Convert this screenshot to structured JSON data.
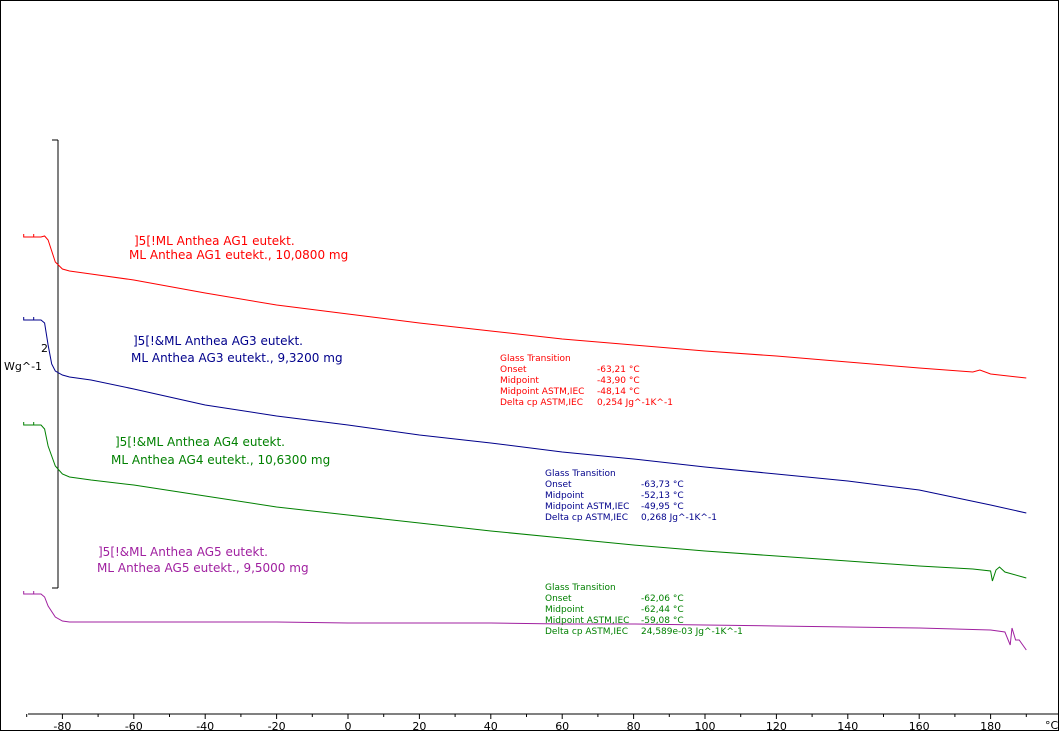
{
  "chart_data": {
    "type": "line",
    "xlim": [
      -90,
      190
    ],
    "x_unit": "°C",
    "x_ticks": [
      -80,
      -60,
      -40,
      -20,
      0,
      20,
      40,
      60,
      80,
      100,
      120,
      140,
      160,
      180
    ],
    "y_scale_label": "Wg^-1",
    "y_scale_value": "2",
    "series": [
      {
        "id": "AG1",
        "color": "#ff0000",
        "label_line1": "]5[!ML Anthea AG1 eutekt.",
        "label_line2": "ML Anthea AG1 eutekt., 10,0800 mg",
        "x": [
          -90,
          -86,
          -85,
          -84,
          -82,
          -80,
          -78,
          -72,
          -60,
          -40,
          -20,
          0,
          20,
          40,
          60,
          80,
          100,
          120,
          140,
          160,
          175,
          177,
          180,
          190
        ],
        "y": [
          237,
          237,
          236,
          240,
          262,
          269,
          271,
          274,
          280,
          293,
          305,
          314,
          323,
          331,
          339,
          345,
          351,
          356,
          362,
          368,
          372,
          370,
          374,
          378
        ]
      },
      {
        "id": "AG3",
        "color": "#00008b",
        "label_line1": "]5[!&ML Anthea AG3 eutekt.",
        "label_line2": "ML Anthea AG3 eutekt., 9,3200 mg",
        "x": [
          -90,
          -86,
          -85,
          -84,
          -83,
          -82,
          -80,
          -78,
          -72,
          -60,
          -40,
          -20,
          0,
          20,
          40,
          60,
          80,
          100,
          120,
          140,
          160,
          180,
          190
        ],
        "y": [
          320,
          320,
          323,
          345,
          364,
          371,
          375,
          377,
          380,
          389,
          405,
          416,
          425,
          435,
          443,
          452,
          459,
          467,
          474,
          481,
          490,
          505,
          513
        ]
      },
      {
        "id": "AG4",
        "color": "#008000",
        "label_line1": "]5[!&ML Anthea AG4 eutekt.",
        "label_line2": "ML Anthea AG4 eutekt., 10,6300 mg",
        "x": [
          -90,
          -86,
          -85,
          -84,
          -82,
          -80,
          -78,
          -72,
          -60,
          -40,
          -20,
          0,
          20,
          40,
          60,
          80,
          100,
          120,
          140,
          160,
          175,
          180,
          180.5,
          181.5,
          182.5,
          184,
          190
        ],
        "y": [
          425,
          425,
          429,
          446,
          466,
          474,
          477,
          480,
          485,
          496,
          507,
          515,
          523,
          531,
          538,
          545,
          551,
          556,
          561,
          566,
          569,
          571,
          581,
          570,
          567,
          572,
          578
        ]
      },
      {
        "id": "AG5",
        "color": "#a020a0",
        "label_line1": "]5[!&ML Anthea AG5 eutekt.",
        "label_line2": "ML Anthea AG5 eutekt., 9,5000 mg",
        "x": [
          -90,
          -86,
          -85,
          -84,
          -82,
          -80,
          -78,
          -72,
          -60,
          -40,
          -20,
          0,
          20,
          40,
          60,
          80,
          100,
          120,
          140,
          160,
          180,
          184,
          185.5,
          186,
          187,
          188,
          190
        ],
        "y": [
          594,
          594,
          597,
          606,
          617,
          621,
          622,
          622,
          622,
          622,
          622,
          623,
          623,
          623,
          624,
          624,
          625,
          626,
          627,
          628,
          630,
          632,
          645,
          628,
          640,
          640,
          650
        ]
      }
    ],
    "annotations": [
      {
        "color": "#ff0000",
        "title": "Glass Transition",
        "rows": [
          [
            "Onset",
            "-63,21 °C"
          ],
          [
            "Midpoint",
            "-43,90 °C"
          ],
          [
            "Midpoint ASTM,IEC",
            "-48,14 °C"
          ],
          [
            "Delta cp ASTM,IEC",
            "0,254 Jg^-1K^-1"
          ]
        ]
      },
      {
        "color": "#00008b",
        "title": "Glass Transition",
        "rows": [
          [
            "Onset",
            "-63,73 °C"
          ],
          [
            "Midpoint",
            "-52,13 °C"
          ],
          [
            "Midpoint ASTM,IEC",
            "-49,95 °C"
          ],
          [
            "Delta cp ASTM,IEC",
            "0,268 Jg^-1K^-1"
          ]
        ]
      },
      {
        "color": "#008000",
        "title": "Glass Transition",
        "rows": [
          [
            "Onset",
            "-62,06 °C"
          ],
          [
            "Midpoint",
            "-62,44 °C"
          ],
          [
            "Midpoint ASTM,IEC",
            "-59,08 °C"
          ],
          [
            "Delta cp ASTM,IEC",
            "24,589e-03 Jg^-1K^-1"
          ]
        ]
      }
    ]
  }
}
